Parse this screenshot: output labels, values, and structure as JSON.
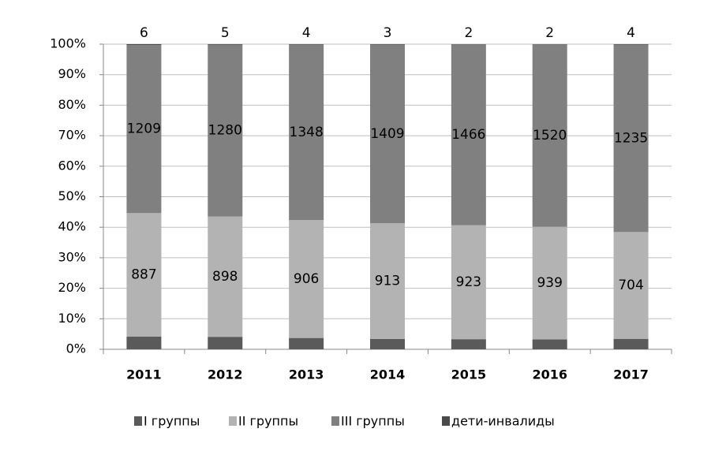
{
  "chart_data": {
    "type": "bar",
    "stacking": "percent",
    "categories": [
      "2011",
      "2012",
      "2013",
      "2014",
      "2015",
      "2016",
      "2017"
    ],
    "series": [
      {
        "name": "I группы",
        "color": "#5a5a5a",
        "values": [
          92,
          93,
          87,
          82,
          82,
          82,
          69
        ]
      },
      {
        "name": "II группы",
        "color": "#b3b3b3",
        "values": [
          887,
          898,
          906,
          913,
          923,
          939,
          704
        ]
      },
      {
        "name": "III группы",
        "color": "#808080",
        "values": [
          1209,
          1280,
          1348,
          1409,
          1466,
          1520,
          1235
        ]
      },
      {
        "name": "дети-инвалиды",
        "color": "#4a4a4a",
        "values": [
          6,
          5,
          4,
          3,
          2,
          2,
          4
        ]
      }
    ],
    "ylim": [
      0,
      100
    ],
    "yticks": [
      {
        "value": 0,
        "label": "0%"
      },
      {
        "value": 10,
        "label": "10%"
      },
      {
        "value": 20,
        "label": "20%"
      },
      {
        "value": 30,
        "label": "30%"
      },
      {
        "value": 40,
        "label": "40%"
      },
      {
        "value": 50,
        "label": "50%"
      },
      {
        "value": 60,
        "label": "60%"
      },
      {
        "value": 70,
        "label": "70%"
      },
      {
        "value": 80,
        "label": "80%"
      },
      {
        "value": 90,
        "label": "90%"
      },
      {
        "value": 100,
        "label": "100%"
      }
    ],
    "grid": true,
    "legend": "bottom"
  }
}
